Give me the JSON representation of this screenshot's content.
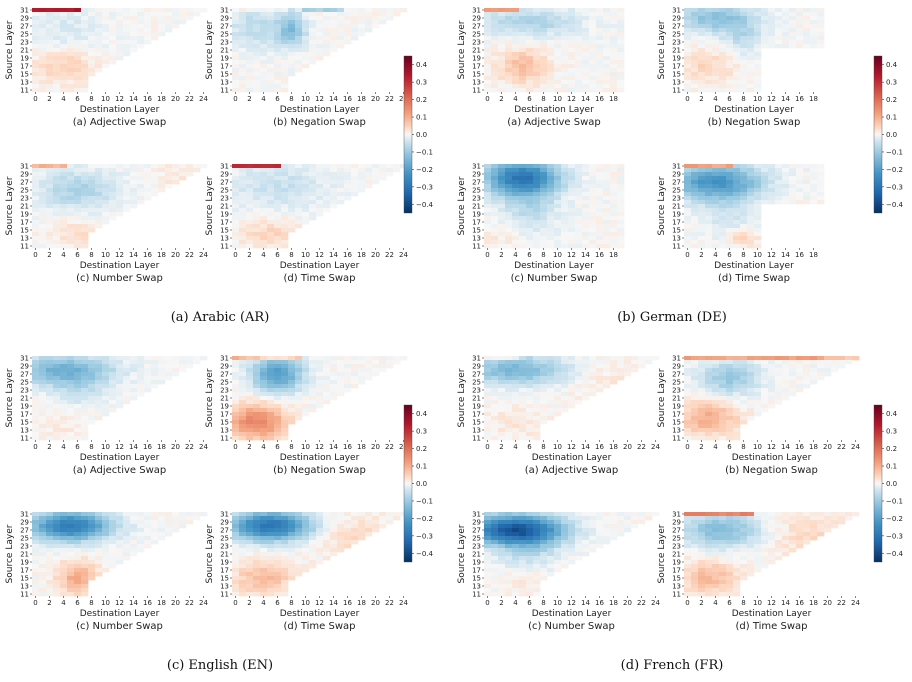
{
  "chart_data": {
    "type": "heatmap",
    "colormap": "RdBu_r",
    "value_range": [
      -0.45,
      0.45
    ],
    "colorbar_ticks": [
      "0.4",
      "0.3",
      "0.2",
      "0.1",
      "0.0",
      "−0.1",
      "−0.2",
      "−0.3",
      "−0.4"
    ],
    "axis_labels": {
      "x": "Destination Layer",
      "y": "Source Layer"
    },
    "groups": [
      {
        "caption": "(a) Arabic (AR)",
        "panels": [
          {
            "caption": "(a) Adjective Swap",
            "x_ticks": [
              "0",
              "2",
              "4",
              "6",
              "8",
              "10",
              "12",
              "14",
              "16",
              "18",
              "20",
              "22",
              "24"
            ],
            "y_ticks": [
              "31",
              "29",
              "27",
              "25",
              "23",
              "21",
              "19",
              "17",
              "15",
              "13",
              "11"
            ],
            "pattern": "ar-adj"
          },
          {
            "caption": "(b) Negation Swap",
            "x_ticks": [
              "0",
              "2",
              "4",
              "6",
              "8",
              "10",
              "12",
              "14",
              "16",
              "18",
              "20",
              "22",
              "24"
            ],
            "y_ticks": [
              "31",
              "29",
              "27",
              "25",
              "23",
              "21",
              "19",
              "17",
              "15",
              "13",
              "11"
            ],
            "pattern": "ar-neg"
          },
          {
            "caption": "(c) Number Swap",
            "x_ticks": [
              "0",
              "2",
              "4",
              "6",
              "8",
              "10",
              "12",
              "14",
              "16",
              "18",
              "20",
              "22",
              "24"
            ],
            "y_ticks": [
              "31",
              "29",
              "27",
              "25",
              "23",
              "21",
              "19",
              "17",
              "15",
              "13",
              "11"
            ],
            "pattern": "ar-num"
          },
          {
            "caption": "(d) Time Swap",
            "x_ticks": [
              "0",
              "2",
              "4",
              "6",
              "8",
              "10",
              "12",
              "14",
              "16",
              "18",
              "20",
              "22",
              "24"
            ],
            "y_ticks": [
              "31",
              "29",
              "27",
              "25",
              "23",
              "21",
              "19",
              "17",
              "15",
              "13",
              "11"
            ],
            "pattern": "ar-time"
          }
        ]
      },
      {
        "caption": "(b) German (DE)",
        "panels": [
          {
            "caption": "(a) Adjective Swap",
            "x_ticks": [
              "0",
              "2",
              "4",
              "6",
              "8",
              "10",
              "12",
              "14",
              "16",
              "18"
            ],
            "y_ticks": [
              "31",
              "29",
              "27",
              "25",
              "23",
              "21",
              "19",
              "17",
              "15",
              "13",
              "11"
            ],
            "pattern": "de-adj"
          },
          {
            "caption": "(b) Negation Swap",
            "x_ticks": [
              "0",
              "2",
              "4",
              "6",
              "8",
              "10",
              "12",
              "14",
              "16",
              "18"
            ],
            "y_ticks": [
              "31",
              "29",
              "27",
              "25",
              "23",
              "21",
              "19",
              "17",
              "15",
              "13",
              "11"
            ],
            "pattern": "de-neg"
          },
          {
            "caption": "(c) Number Swap",
            "x_ticks": [
              "0",
              "2",
              "4",
              "6",
              "8",
              "10",
              "12",
              "14",
              "16",
              "18"
            ],
            "y_ticks": [
              "31",
              "29",
              "27",
              "25",
              "23",
              "21",
              "19",
              "17",
              "15",
              "13",
              "11"
            ],
            "pattern": "de-num"
          },
          {
            "caption": "(d) Time Swap",
            "x_ticks": [
              "0",
              "2",
              "4",
              "6",
              "8",
              "10",
              "12",
              "14",
              "16",
              "18"
            ],
            "y_ticks": [
              "31",
              "29",
              "27",
              "25",
              "23",
              "21",
              "19",
              "17",
              "15",
              "13",
              "11"
            ],
            "pattern": "de-time"
          }
        ]
      },
      {
        "caption": "(c) English (EN)",
        "panels": [
          {
            "caption": "(a) Adjective Swap",
            "x_ticks": [
              "0",
              "2",
              "4",
              "6",
              "8",
              "10",
              "12",
              "14",
              "16",
              "18",
              "20",
              "22",
              "24"
            ],
            "y_ticks": [
              "31",
              "29",
              "27",
              "25",
              "23",
              "21",
              "19",
              "17",
              "15",
              "13",
              "11"
            ],
            "pattern": "en-adj"
          },
          {
            "caption": "(b) Negation Swap",
            "x_ticks": [
              "0",
              "2",
              "4",
              "6",
              "8",
              "10",
              "12",
              "14",
              "16",
              "18",
              "20",
              "22",
              "24"
            ],
            "y_ticks": [
              "31",
              "29",
              "27",
              "25",
              "23",
              "21",
              "19",
              "17",
              "15",
              "13",
              "11"
            ],
            "pattern": "en-neg"
          },
          {
            "caption": "(c) Number Swap",
            "x_ticks": [
              "0",
              "2",
              "4",
              "6",
              "8",
              "10",
              "12",
              "14",
              "16",
              "18",
              "20",
              "22",
              "24"
            ],
            "y_ticks": [
              "31",
              "29",
              "27",
              "25",
              "23",
              "21",
              "19",
              "17",
              "15",
              "13",
              "11"
            ],
            "pattern": "en-num"
          },
          {
            "caption": "(d) Time Swap",
            "x_ticks": [
              "0",
              "2",
              "4",
              "6",
              "8",
              "10",
              "12",
              "14",
              "16",
              "18",
              "20",
              "22",
              "24"
            ],
            "y_ticks": [
              "31",
              "29",
              "27",
              "25",
              "23",
              "21",
              "19",
              "17",
              "15",
              "13",
              "11"
            ],
            "pattern": "en-time"
          }
        ]
      },
      {
        "caption": "(d) French (FR)",
        "panels": [
          {
            "caption": "(a) Adjective Swap",
            "x_ticks": [
              "0",
              "2",
              "4",
              "6",
              "8",
              "10",
              "12",
              "14",
              "16",
              "18",
              "20",
              "22",
              "24"
            ],
            "y_ticks": [
              "31",
              "29",
              "27",
              "25",
              "23",
              "21",
              "19",
              "17",
              "15",
              "13",
              "11"
            ],
            "pattern": "fr-adj"
          },
          {
            "caption": "(b) Negation Swap",
            "x_ticks": [
              "0",
              "2",
              "4",
              "6",
              "8",
              "10",
              "12",
              "14",
              "16",
              "18",
              "20",
              "22",
              "24"
            ],
            "y_ticks": [
              "31",
              "29",
              "27",
              "25",
              "23",
              "21",
              "19",
              "17",
              "15",
              "13",
              "11"
            ],
            "pattern": "fr-neg"
          },
          {
            "caption": "(c) Number Swap",
            "x_ticks": [
              "0",
              "2",
              "4",
              "6",
              "8",
              "10",
              "12",
              "14",
              "16",
              "18",
              "20",
              "22",
              "24"
            ],
            "y_ticks": [
              "31",
              "29",
              "27",
              "25",
              "23",
              "21",
              "19",
              "17",
              "15",
              "13",
              "11"
            ],
            "pattern": "fr-num"
          },
          {
            "caption": "(d) Time Swap",
            "x_ticks": [
              "0",
              "2",
              "4",
              "6",
              "8",
              "10",
              "12",
              "14",
              "16",
              "18",
              "20",
              "22",
              "24"
            ],
            "y_ticks": [
              "31",
              "29",
              "27",
              "25",
              "23",
              "21",
              "19",
              "17",
              "15",
              "13",
              "11"
            ],
            "pattern": "fr-time"
          }
        ]
      }
    ]
  }
}
